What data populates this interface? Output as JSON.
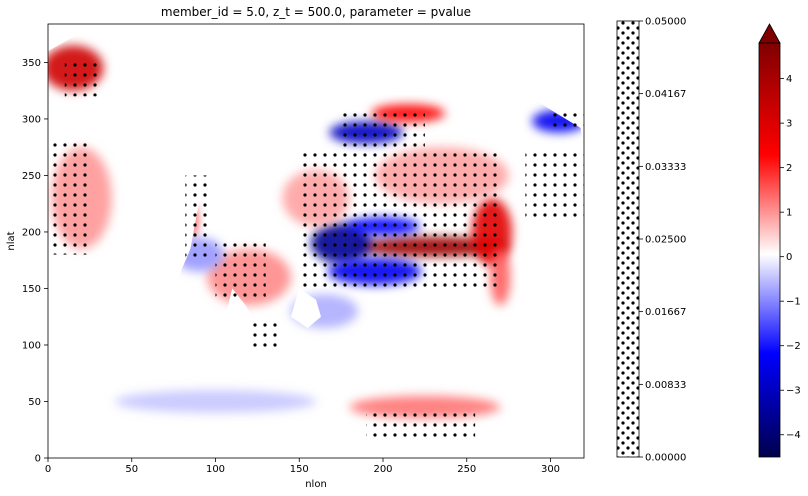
{
  "chart_data": {
    "type": "heatmap",
    "title": "member_id = 5.0, z_t = 500.0, parameter = pvalue",
    "xlabel": "nlon",
    "ylabel": "nlat",
    "xlim": [
      0,
      320
    ],
    "ylim": [
      0,
      384
    ],
    "x_ticks": [
      "0",
      "50",
      "100",
      "150",
      "200",
      "250",
      "300"
    ],
    "y_ticks": [
      "0",
      "50",
      "100",
      "150",
      "200",
      "250",
      "300",
      "350"
    ],
    "colormap": "seismic",
    "colors": {
      "low": "#00004c",
      "mid": "#ffffff",
      "high": "#800000"
    },
    "colorbar": {
      "range": [
        -4.5,
        4.8
      ],
      "ticks": [
        "4",
        "3",
        "2",
        "1",
        "0",
        "−1",
        "−2",
        "−3",
        "−4"
      ],
      "extend": "max"
    },
    "hatch_legend": {
      "range": [
        0,
        0.05
      ],
      "ticks": [
        "0.05000",
        "0.04167",
        "0.03333",
        "0.02500",
        "0.01667",
        "0.00833",
        "0.00000"
      ]
    },
    "anomalies": [
      {
        "lon": 230,
        "lat": 187,
        "value": 4.2,
        "rx": 45,
        "ry": 9
      },
      {
        "lon": 265,
        "lat": 200,
        "value": 2.8,
        "rx": 12,
        "ry": 30
      },
      {
        "lon": 175,
        "lat": 190,
        "value": -3.6,
        "rx": 18,
        "ry": 18
      },
      {
        "lon": 200,
        "lat": 205,
        "value": -2.2,
        "rx": 22,
        "ry": 8
      },
      {
        "lon": 195,
        "lat": 165,
        "value": -2.4,
        "rx": 28,
        "ry": 12
      },
      {
        "lon": 190,
        "lat": 288,
        "value": -3.0,
        "rx": 22,
        "ry": 10
      },
      {
        "lon": 215,
        "lat": 305,
        "value": 2.2,
        "rx": 22,
        "ry": 8
      },
      {
        "lon": 305,
        "lat": 298,
        "value": -2.4,
        "rx": 16,
        "ry": 10
      },
      {
        "lon": 310,
        "lat": 345,
        "value": 2.4,
        "rx": 10,
        "ry": 10
      },
      {
        "lon": 15,
        "lat": 345,
        "value": 3.2,
        "rx": 18,
        "ry": 20
      },
      {
        "lon": 225,
        "lat": 45,
        "value": 1.2,
        "rx": 45,
        "ry": 10
      },
      {
        "lon": 120,
        "lat": 160,
        "value": 1.0,
        "rx": 25,
        "ry": 25
      },
      {
        "lon": 20,
        "lat": 230,
        "value": 0.9,
        "rx": 18,
        "ry": 45
      },
      {
        "lon": 85,
        "lat": 210,
        "value": 1.8,
        "rx": 4,
        "ry": 15
      },
      {
        "lon": 90,
        "lat": 180,
        "value": -0.9,
        "rx": 15,
        "ry": 15
      },
      {
        "lon": 160,
        "lat": 230,
        "value": 0.8,
        "rx": 20,
        "ry": 25
      },
      {
        "lon": 100,
        "lat": 50,
        "value": -0.5,
        "rx": 60,
        "ry": 10
      },
      {
        "lon": 270,
        "lat": 160,
        "value": 1.4,
        "rx": 6,
        "ry": 25
      },
      {
        "lon": 165,
        "lat": 130,
        "value": -0.7,
        "rx": 20,
        "ry": 15
      },
      {
        "lon": 235,
        "lat": 250,
        "value": 0.8,
        "rx": 40,
        "ry": 25
      }
    ],
    "land": [
      [
        [
          50,
          385
        ],
        [
          65,
          360
        ],
        [
          130,
          360
        ],
        [
          180,
          380
        ],
        [
          225,
          385
        ]
      ],
      [
        [
          100,
          370
        ],
        [
          85,
          340
        ],
        [
          80,
          300
        ],
        [
          75,
          240
        ],
        [
          62,
          175
        ],
        [
          58,
          120
        ],
        [
          65,
          100
        ],
        [
          70,
          115
        ],
        [
          75,
          150
        ],
        [
          85,
          185
        ],
        [
          90,
          225
        ],
        [
          100,
          260
        ],
        [
          145,
          285
        ],
        [
          160,
          330
        ],
        [
          190,
          360
        ],
        [
          180,
          385
        ]
      ],
      [
        [
          110,
          150
        ],
        [
          118,
          135
        ],
        [
          122,
          125
        ],
        [
          125,
          100
        ],
        [
          118,
          85
        ],
        [
          112,
          75
        ],
        [
          108,
          95
        ],
        [
          105,
          120
        ]
      ],
      [
        [
          150,
          150
        ],
        [
          160,
          140
        ],
        [
          163,
          125
        ],
        [
          155,
          115
        ],
        [
          145,
          125
        ]
      ],
      [
        [
          250,
          385
        ],
        [
          270,
          340
        ],
        [
          298,
          310
        ],
        [
          318,
          292
        ],
        [
          320,
          270
        ],
        [
          298,
          268
        ],
        [
          280,
          240
        ],
        [
          282,
          215
        ],
        [
          290,
          180
        ],
        [
          305,
          160
        ],
        [
          320,
          150
        ],
        [
          320,
          385
        ]
      ],
      [
        [
          300,
          110
        ],
        [
          318,
          120
        ],
        [
          320,
          135
        ],
        [
          320,
          100
        ]
      ],
      [
        [
          30,
          385
        ],
        [
          40,
          385
        ],
        [
          0,
          385
        ],
        [
          0,
          360
        ]
      ]
    ],
    "stipple": [
      {
        "lon": [
          10,
          30
        ],
        "lat": [
          320,
          355
        ]
      },
      {
        "lon": [
          0,
          25
        ],
        "lat": [
          180,
          280
        ]
      },
      {
        "lon": [
          82,
          95
        ],
        "lat": [
          175,
          250
        ]
      },
      {
        "lon": [
          100,
          130
        ],
        "lat": [
          140,
          190
        ]
      },
      {
        "lon": [
          120,
          140
        ],
        "lat": [
          95,
          120
        ]
      },
      {
        "lon": [
          150,
          270
        ],
        "lat": [
          150,
          270
        ]
      },
      {
        "lon": [
          175,
          225
        ],
        "lat": [
          275,
          310
        ]
      },
      {
        "lon": [
          285,
          320
        ],
        "lat": [
          210,
          275
        ]
      },
      {
        "lon": [
          190,
          255
        ],
        "lat": [
          15,
          45
        ]
      },
      {
        "lon": [
          300,
          320
        ],
        "lat": [
          290,
          305
        ]
      }
    ]
  }
}
